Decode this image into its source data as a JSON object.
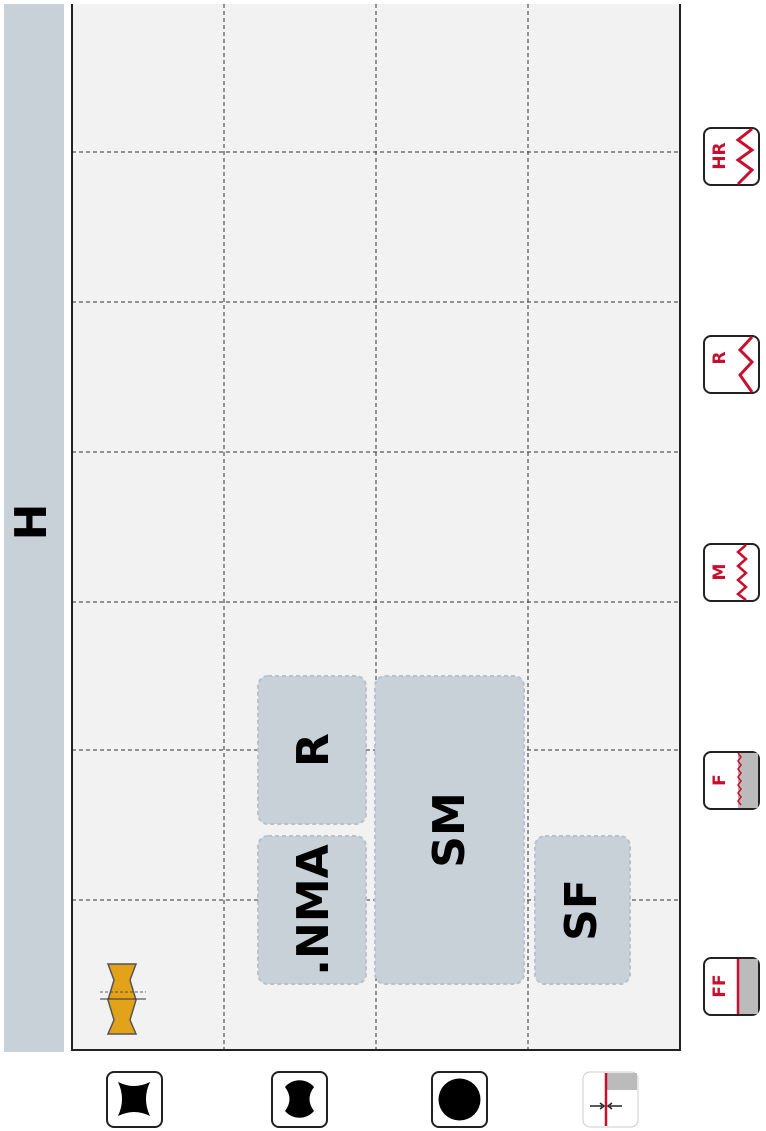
{
  "sidebar": {
    "label": "H"
  },
  "boxes": [
    {
      "label": ".NMA"
    },
    {
      "label": "R"
    },
    {
      "label": "SM"
    },
    {
      "label": "SF"
    }
  ],
  "finish_icons": [
    {
      "label": "HR"
    },
    {
      "label": "R"
    },
    {
      "label": "M"
    },
    {
      "label": "F"
    },
    {
      "label": "FF"
    }
  ]
}
